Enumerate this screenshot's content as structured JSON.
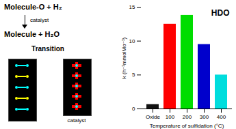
{
  "chart_data": {
    "type": "bar",
    "categories": [
      "Oxide",
      "100",
      "200",
      "300",
      "400"
    ],
    "values": [
      0.65,
      12.5,
      13.8,
      9.5,
      5.0
    ],
    "colors": [
      "#111111",
      "#ff0000",
      "#00dd00",
      "#0000cc",
      "#00dddd"
    ],
    "ylim": [
      0,
      15
    ],
    "yticks": [
      0,
      5,
      10,
      15
    ],
    "xlabel": "Temperature of sulfidation (°C)",
    "ylabel": "k (h⁻¹mmolMo⁻¹)",
    "annotations": [
      "Molecule-O + H₂",
      "catalyst",
      "Molecule + H₂O",
      "Transition",
      "catalyst",
      "HDO"
    ],
    "grid": false
  }
}
